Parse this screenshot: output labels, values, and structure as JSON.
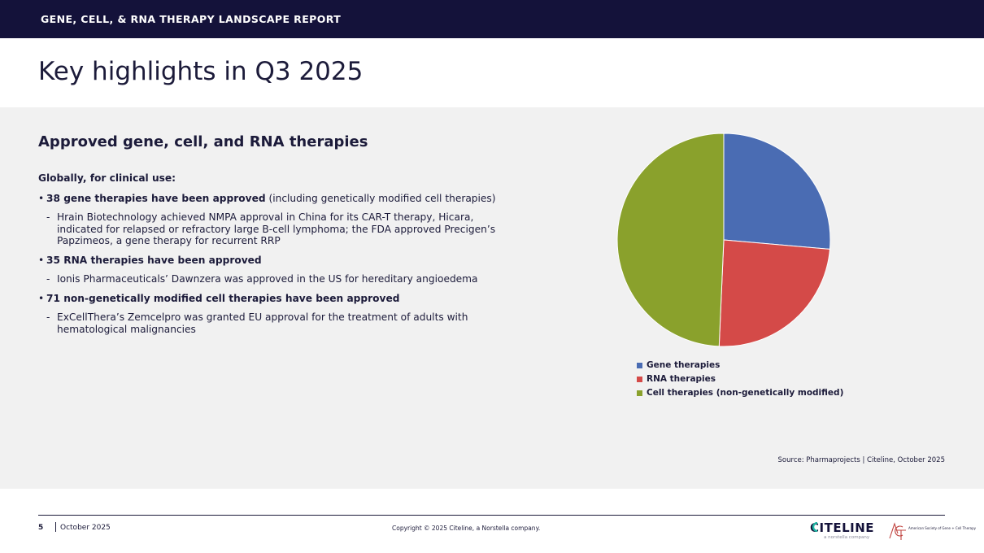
{
  "header": {
    "title": "GENE, CELL, & RNA THERAPY LANDSCAPE REPORT"
  },
  "page_title": "Key highlights in Q3 2025",
  "section": {
    "title": "Approved gene, cell, and RNA therapies",
    "intro": "Globally, for clinical use:",
    "items": [
      {
        "bold": "38 gene therapies have been approved",
        "rest": " (including genetically modified cell therapies)",
        "sub": "Hrain Biotechnology achieved NMPA approval in China for its CAR-T therapy, Hicara, indicated for relapsed or refractory large B-cell lymphoma; the FDA approved Precigen’s Papzimeos, a gene therapy for recurrent RRP"
      },
      {
        "bold": "35 RNA therapies have been approved",
        "rest": "",
        "sub": "Ionis Pharmaceuticals’ Dawnzera was approved in the US for hereditary angioedema"
      },
      {
        "bold": "71 non-genetically modified cell therapies have been approved",
        "rest": "",
        "sub": "ExCellThera’s Zemcelpro was granted EU approval for the treatment of adults with hematological malignancies"
      }
    ]
  },
  "chart_data": {
    "type": "pie",
    "title": "",
    "slices": [
      {
        "label": "Gene therapies",
        "value": 38,
        "color": "#4a6cb3"
      },
      {
        "label": "RNA therapies",
        "value": 35,
        "color": "#d44a48"
      },
      {
        "label": "Cell therapies (non-genetically modified)",
        "value": 71,
        "color": "#8aa12c"
      }
    ],
    "start_angle": "12 o'clock",
    "direction": "clockwise",
    "legend": "bottom"
  },
  "source": "Source: Pharmaprojects | Citeline, October 2025",
  "footer": {
    "page_number": "5",
    "date": "October 2025",
    "copyright": "Copyright © 2025 Citeline, a Norstella company.",
    "citeline_logo": "CITELINE",
    "citeline_sub": "a norstella company",
    "asgct_text": "American Society of Gene + Cell Therapy"
  }
}
